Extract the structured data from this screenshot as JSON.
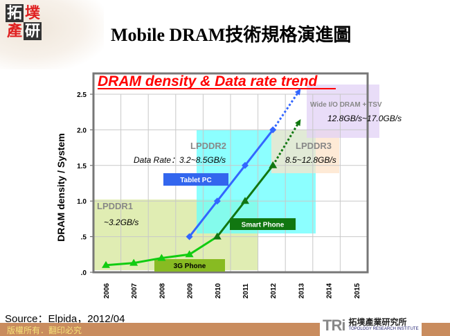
{
  "header": {
    "title": "Mobile DRAM技術規格演進圖",
    "logo_text": "拓墣產研"
  },
  "chart_data": {
    "type": "line",
    "title": "DRAM density & Data rate trend",
    "ylabel": "DRAM density / System",
    "xlabel": "",
    "x": [
      "2006",
      "2007",
      "2008",
      "2009",
      "2010",
      "2011",
      "2012",
      "2013",
      "2014",
      "2015"
    ],
    "y_ticks": [
      "2.5",
      "2.0",
      "1.5",
      "1.0",
      ".5",
      ".0"
    ],
    "ylim": [
      0,
      2.5
    ],
    "grid": true,
    "series": [
      {
        "color": "#3366ff",
        "marker": "diamond",
        "points": [
          [
            "2009",
            0.5
          ],
          [
            "2010",
            1.0
          ],
          [
            "2011",
            1.5
          ],
          [
            "2012",
            2.0
          ]
        ],
        "projection": [
          [
            "2012",
            2.0
          ],
          [
            "2013",
            2.58
          ]
        ]
      },
      {
        "color": "#11cc11",
        "color_late": "#117711",
        "marker": "triangle",
        "points": [
          [
            "2006",
            0.1
          ],
          [
            "2007",
            0.13
          ],
          [
            "2008",
            0.2
          ],
          [
            "2009",
            0.25
          ],
          [
            "2010",
            0.5
          ],
          [
            "2011",
            1.0
          ],
          [
            "2012",
            1.5
          ]
        ],
        "projection": [
          [
            "2012",
            1.5
          ],
          [
            "2013",
            2.15
          ]
        ]
      }
    ],
    "regions": [
      {
        "label": "LPDDR1",
        "sublabel": "~3.2GB/s",
        "color": "#d6e79a"
      },
      {
        "label": "LPDDR2",
        "sublabel": "Data Rate：3.2~8.5GB/s",
        "color": "#66ffff"
      },
      {
        "label": "LPDDR3",
        "sublabel": "8.5~12.8GB/s",
        "color": "#fde3c8"
      },
      {
        "label": "Wide I/O DRAM + TSV",
        "sublabel": "12.8GB/s~17.0GB/s",
        "color": "#e2d2f6"
      }
    ],
    "annotations": [
      {
        "label": "Tablet PC",
        "color": "#3366ee"
      },
      {
        "label": "Smart Phone",
        "color": "#117711"
      },
      {
        "label": "3G Phone",
        "color": "#88bb22"
      }
    ]
  },
  "footer": {
    "source": "Source：Elpida，2012/04",
    "copyright": "版權所有．翻印必究",
    "org_logo_mark": "TRi",
    "org_name_cn": "拓墣產業研究所",
    "org_name_en": "TOPOLOGY RESEARCH INSTITUTE"
  }
}
